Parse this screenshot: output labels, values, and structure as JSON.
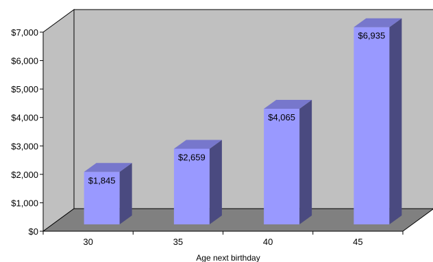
{
  "chart_data": {
    "type": "bar",
    "categories": [
      "30",
      "35",
      "40",
      "45"
    ],
    "series": [
      {
        "values": [
          1845,
          2659,
          4065,
          6935
        ],
        "data_labels": [
          "$1,845",
          "$2,659",
          "$4,065",
          "$6,935"
        ]
      }
    ],
    "ylim": [
      0,
      7000
    ],
    "y_ticks": [
      0,
      1000,
      2000,
      3000,
      4000,
      5000,
      6000,
      7000
    ],
    "y_tick_labels": [
      "$0",
      "$1,000",
      "$2,000",
      "$3,000",
      "$4,000",
      "$5,000",
      "$6,000",
      "$7,000"
    ],
    "xlabel": "Age next birthday",
    "ylabel": "",
    "title": "",
    "grid": false,
    "legend": "none",
    "style": "3d-column",
    "colors": {
      "bar_front": "#9999ff",
      "bar_top": "#7777cc",
      "bar_side": "#4a4a80",
      "back_wall": "#c0c0c0",
      "side_wall": "#c0c0c0",
      "floor": "#808080",
      "outline": "#000000"
    }
  }
}
